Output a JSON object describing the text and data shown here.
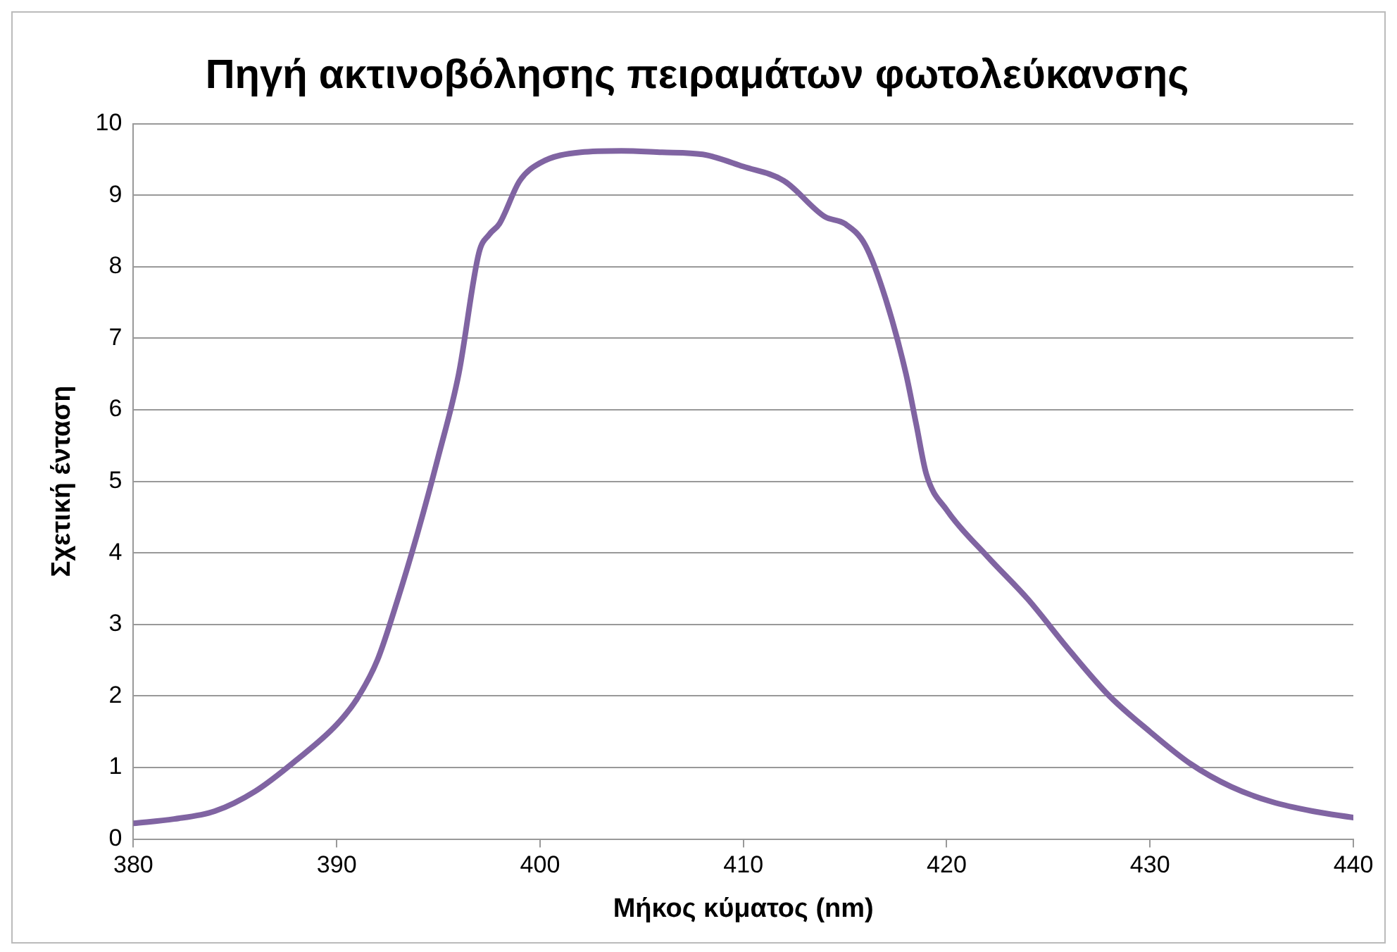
{
  "chart_data": {
    "type": "line",
    "title": "Πηγή ακτινοβόλησης πειραμάτων φωτολεύκανσης",
    "xlabel": "Μήκος κύματος (nm)",
    "ylabel": "Σχετική ένταση",
    "x": [
      380,
      382,
      384,
      386,
      388,
      390,
      391,
      392,
      393,
      394,
      395,
      396,
      397,
      397.5,
      398,
      399,
      400,
      402,
      404,
      406,
      408,
      410,
      412,
      414,
      415,
      416,
      417,
      418,
      418.5,
      419,
      420,
      422,
      424,
      426,
      428,
      430,
      432,
      434,
      436,
      438,
      440
    ],
    "series": [
      {
        "color": "#8064a2",
        "values": [
          0.22,
          0.28,
          0.39,
          0.67,
          1.1,
          1.6,
          1.96,
          2.5,
          3.35,
          4.3,
          5.35,
          6.5,
          8.2,
          8.45,
          8.6,
          9.2,
          9.45,
          9.6,
          9.62,
          9.6,
          9.57,
          9.4,
          9.2,
          8.7,
          8.6,
          8.3,
          7.55,
          6.5,
          5.8,
          5.1,
          4.6,
          3.95,
          3.35,
          2.65,
          2.0,
          1.5,
          1.05,
          0.73,
          0.52,
          0.39,
          0.3
        ]
      }
    ],
    "xlim": [
      380,
      440
    ],
    "xticks": [
      380,
      390,
      400,
      410,
      420,
      430,
      440
    ],
    "ylim": [
      0,
      10
    ],
    "yticks": [
      0,
      1,
      2,
      3,
      4,
      5,
      6,
      7,
      8,
      9,
      10
    ],
    "grid": "y",
    "legend": false,
    "marker": "none",
    "line_style": "solid"
  }
}
